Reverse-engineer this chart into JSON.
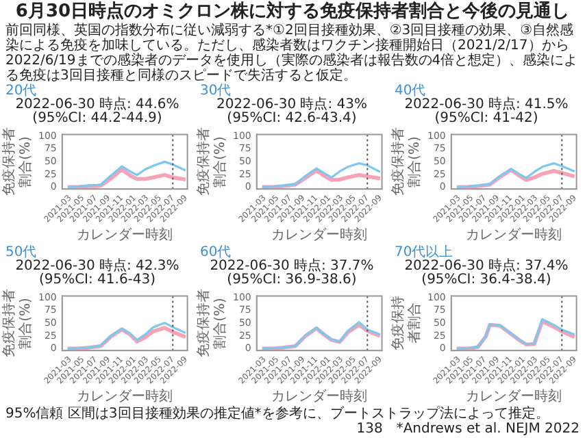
{
  "chart_data": [
    {
      "type": "other",
      "title": "6月30日時点のオミクロン株に対する免疫保持者割合と今後の見通し",
      "annotations": [
        "前回同様、英国の指数分布に従い減弱する*①2回目接種効果、②3回目接種の効果、③自然感染による免疫を加味している。ただし、感染者数はワクチン接種開始日（2021/2/17）から2022/6/19までの感染者のデータを使用し（実際の感染者は報告数の4倍と想定）、感染による免疫は3回目接種と同様のスピードで失活すると仮定。"
      ]
    },
    {
      "type": "line",
      "title": "20代",
      "subtitle": "2022-06-30 時点: 44.6%  (95%CI: 44.2-44.9)",
      "xlabel": "カレンダー時刻",
      "ylabel": "免疫保持者割合(%)",
      "x": [
        "2021-02-17",
        "2021-04-10",
        "2021-05-28",
        "2021-07-05",
        "2021-07-24",
        "2021-09-10",
        "2021-11-01",
        "2021-12-09",
        "2022-01-12",
        "2022-02-19",
        "2022-03-29",
        "2022-05-22",
        "2022-06-30",
        "2022-08-29"
      ],
      "xlim": [
        "2021-01-22",
        "2022-09-07"
      ],
      "xticks": [
        "2021-03",
        "2021-05",
        "2021-07",
        "2021-09",
        "2021-11",
        "2022-01",
        "2022-03",
        "2022-05",
        "2022-07",
        "2022-09"
      ],
      "ylim": [
        -4,
        104
      ],
      "yticks": [
        0,
        25,
        50,
        75,
        100
      ],
      "marker": "none",
      "ref_lines": [
        {
          "axis": "x",
          "value": "2022-06-30",
          "color": "#555555",
          "line_style": "dotted"
        }
      ],
      "series": [
        {
          "color": "#7ec8f0",
          "values": [
            0,
            1,
            3,
            4,
            5,
            23,
            41,
            31,
            24,
            35,
            42,
            50,
            44.6,
            33
          ]
        },
        {
          "color": "#f5a3b5",
          "values": [
            0,
            0,
            2,
            2,
            3,
            17,
            35,
            23,
            16,
            16,
            19,
            24,
            19,
            15
          ]
        }
      ]
    },
    {
      "type": "line",
      "title": "30代",
      "subtitle": "2022-06-30 時点: 43%  (95%CI: 42.6-43.4)",
      "xlabel": "カレンダー時刻",
      "ylabel": "免疫保持者割合(%)",
      "x": [
        "2021-02-17",
        "2021-04-10",
        "2021-05-28",
        "2021-07-05",
        "2021-07-24",
        "2021-09-10",
        "2021-11-01",
        "2021-12-09",
        "2022-01-12",
        "2022-02-19",
        "2022-03-29",
        "2022-05-22",
        "2022-06-30",
        "2022-08-29"
      ],
      "xlim": [
        "2021-01-22",
        "2022-09-07"
      ],
      "xticks": [
        "2021-03",
        "2021-05",
        "2021-07",
        "2021-09",
        "2021-11",
        "2022-01",
        "2022-03",
        "2022-05",
        "2022-07",
        "2022-09"
      ],
      "ylim": [
        -4,
        104
      ],
      "yticks": [
        0,
        25,
        50,
        75,
        100
      ],
      "marker": "none",
      "ref_lines": [
        {
          "axis": "x",
          "value": "2022-06-30",
          "color": "#555555",
          "line_style": "dotted"
        }
      ],
      "series": [
        {
          "color": "#7ec8f0",
          "values": [
            0,
            1,
            3,
            5,
            6,
            22,
            37,
            27,
            19,
            31,
            40,
            47,
            43,
            30
          ]
        },
        {
          "color": "#f5a3b5",
          "values": [
            0,
            0,
            2,
            4,
            5,
            18,
            33,
            22,
            14,
            15,
            19,
            24,
            21,
            17
          ]
        }
      ]
    },
    {
      "type": "line",
      "title": "40代",
      "subtitle": "2022-06-30 時点: 41.5%  (95%CI: 41-42)",
      "xlabel": "カレンダー時刻",
      "ylabel": "免疫保持者割合(%)",
      "x": [
        "2021-02-17",
        "2021-04-10",
        "2021-05-28",
        "2021-07-05",
        "2021-07-24",
        "2021-09-10",
        "2021-11-01",
        "2021-12-09",
        "2022-01-12",
        "2022-02-19",
        "2022-03-29",
        "2022-05-22",
        "2022-06-30",
        "2022-08-29"
      ],
      "xlim": [
        "2021-01-22",
        "2022-09-07"
      ],
      "xticks": [
        "2021-03",
        "2021-05",
        "2021-07",
        "2021-09",
        "2021-11",
        "2022-01",
        "2022-03",
        "2022-05",
        "2022-07",
        "2022-09"
      ],
      "ylim": [
        -4,
        104
      ],
      "yticks": [
        0,
        25,
        50,
        75,
        100
      ],
      "marker": "none",
      "ref_lines": [
        {
          "axis": "x",
          "value": "2022-06-30",
          "color": "#555555",
          "line_style": "dotted"
        }
      ],
      "series": [
        {
          "color": "#7ec8f0",
          "values": [
            0,
            1,
            3,
            5,
            6,
            22,
            36,
            26,
            18,
            30,
            40,
            47,
            41.5,
            31
          ]
        },
        {
          "color": "#f5a3b5",
          "values": [
            0,
            0,
            2,
            4,
            5,
            20,
            34,
            23,
            14,
            19,
            26,
            32,
            28,
            21
          ]
        }
      ]
    },
    {
      "type": "line",
      "title": "50代",
      "subtitle": "2022-06-30 時点: 42.3%  (95%CI: 41.6-43)",
      "xlabel": "カレンダー時刻",
      "ylabel": "免疫保持者割合(%)",
      "x": [
        "2021-02-17",
        "2021-04-10",
        "2021-05-28",
        "2021-07-05",
        "2021-07-24",
        "2021-09-10",
        "2021-11-01",
        "2021-12-09",
        "2022-01-12",
        "2022-02-19",
        "2022-03-29",
        "2022-05-22",
        "2022-06-30",
        "2022-08-29"
      ],
      "xlim": [
        "2021-01-22",
        "2022-09-07"
      ],
      "xticks": [
        "2021-03",
        "2021-05",
        "2021-07",
        "2021-09",
        "2021-11",
        "2022-01",
        "2022-03",
        "2022-05",
        "2022-07",
        "2022-09"
      ],
      "ylim": [
        -4,
        104
      ],
      "yticks": [
        0,
        25,
        50,
        75,
        100
      ],
      "marker": "none",
      "ref_lines": [
        {
          "axis": "x",
          "value": "2022-06-30",
          "color": "#555555",
          "line_style": "dotted"
        }
      ],
      "series": [
        {
          "color": "#7ec8f0",
          "values": [
            0,
            1,
            2,
            5,
            6,
            25,
            40,
            30,
            17,
            28,
            42,
            51,
            42.3,
            31
          ]
        },
        {
          "color": "#f5a3b5",
          "values": [
            0,
            0,
            2,
            4,
            5,
            24,
            38,
            28,
            14,
            22,
            34,
            41,
            33,
            23
          ]
        }
      ]
    },
    {
      "type": "line",
      "title": "60代",
      "subtitle": "2022-06-30 時点: 37.7%  (95%CI: 36.9-38.6)",
      "xlabel": "カレンダー時刻",
      "ylabel": "免疫保持者割合(%)",
      "x": [
        "2021-02-17",
        "2021-04-10",
        "2021-05-28",
        "2021-07-05",
        "2021-07-24",
        "2021-09-10",
        "2021-11-01",
        "2021-12-09",
        "2022-01-12",
        "2022-02-19",
        "2022-03-29",
        "2022-05-22",
        "2022-06-30",
        "2022-08-29"
      ],
      "xlim": [
        "2021-01-22",
        "2022-09-07"
      ],
      "xticks": [
        "2021-03",
        "2021-05",
        "2021-07",
        "2021-09",
        "2021-11",
        "2022-01",
        "2022-03",
        "2022-05",
        "2022-07",
        "2022-09"
      ],
      "ylim": [
        -4,
        104
      ],
      "yticks": [
        0,
        25,
        50,
        75,
        100
      ],
      "marker": "none",
      "ref_lines": [
        {
          "axis": "x",
          "value": "2022-06-30",
          "color": "#555555",
          "line_style": "dotted"
        }
      ],
      "series": [
        {
          "color": "#7ec8f0",
          "values": [
            0,
            1,
            2,
            4,
            5,
            26,
            41,
            28,
            18,
            14,
            35,
            52,
            37.7,
            28
          ]
        },
        {
          "color": "#f5a3b5",
          "values": [
            0,
            0,
            2,
            4,
            5,
            25,
            40,
            27,
            17,
            13,
            32,
            47,
            35,
            25
          ]
        }
      ]
    },
    {
      "type": "line",
      "title": "70代以上",
      "subtitle": "2022-06-30 時点: 37.4%  (95%CI: 36.4-38.4)",
      "xlabel": "カレンダー時刻",
      "ylabel": "免疫保持者割合",
      "x": [
        "2021-02-17",
        "2021-04-10",
        "2021-05-28",
        "2021-07-05",
        "2021-07-24",
        "2021-09-10",
        "2021-11-01",
        "2021-12-09",
        "2022-01-12",
        "2022-02-19",
        "2022-03-29",
        "2022-05-22",
        "2022-06-30",
        "2022-08-29"
      ],
      "xlim": [
        "2021-01-22",
        "2022-09-07"
      ],
      "xticks": [
        "2021-03",
        "2021-05",
        "2021-07",
        "2021-09",
        "2021-11",
        "2022-01",
        "2022-03",
        "2022-05",
        "2022-07",
        "2022-09"
      ],
      "ylim": [
        -4,
        104
      ],
      "yticks": [
        0,
        25,
        50,
        75,
        100
      ],
      "marker": "none",
      "ref_lines": [
        {
          "axis": "x",
          "value": "2022-06-30",
          "color": "#555555",
          "line_style": "dotted"
        }
      ],
      "series": [
        {
          "color": "#7ec8f0",
          "values": [
            0,
            1,
            3,
            25,
            48,
            46,
            30,
            18,
            9,
            10,
            58,
            47,
            37.4,
            28
          ]
        },
        {
          "color": "#f5a3b5",
          "values": [
            0,
            0,
            3,
            24,
            47,
            45,
            29,
            17,
            8,
            9,
            54,
            43,
            34,
            23
          ]
        }
      ]
    },
    {
      "type": "other",
      "annotations": [
        "95%信頼 区間は3回目接種効果の推定値*を参考に、ブートストラップ法によって推定。",
        "138",
        "*Andrews et al. NEJM 2022"
      ]
    }
  ]
}
